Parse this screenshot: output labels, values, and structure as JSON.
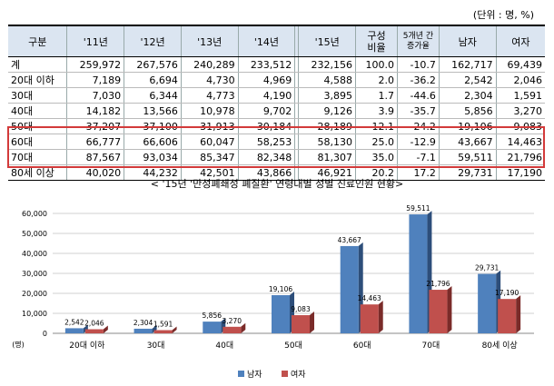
{
  "unit_note": "(단위 : 명, %)",
  "table": {
    "headers": [
      "구분",
      "'11년",
      "'12년",
      "'13년",
      "'14년",
      "'15년",
      "구성\n비율",
      "5개년 간\n증가율",
      "남자",
      "여자"
    ],
    "rows": [
      [
        "계",
        "259,972",
        "267,576",
        "240,289",
        "233,512",
        "232,156",
        "100.0",
        "-10.7",
        "162,717",
        "69,439"
      ],
      [
        "20대 이하",
        "7,189",
        "6,694",
        "4,730",
        "4,969",
        "4,588",
        "2.0",
        "-36.2",
        "2,542",
        "2,046"
      ],
      [
        "30대",
        "7,030",
        "6,344",
        "4,773",
        "4,190",
        "3,895",
        "1.7",
        "-44.6",
        "2,304",
        "1,591"
      ],
      [
        "40대",
        "14,182",
        "13,566",
        "10,978",
        "9,702",
        "9,126",
        "3.9",
        "-35.7",
        "5,856",
        "3,270"
      ],
      [
        "50대",
        "37,207",
        "37,100",
        "31,913",
        "30,184",
        "28,189",
        "12.1",
        "-24.2",
        "19,106",
        "9,083"
      ],
      [
        "60대",
        "66,777",
        "66,606",
        "60,047",
        "58,253",
        "58,130",
        "25.0",
        "-12.9",
        "43,667",
        "14,463"
      ],
      [
        "70대",
        "87,567",
        "93,034",
        "85,347",
        "82,348",
        "81,307",
        "35.0",
        "-7.1",
        "59,511",
        "21,796"
      ],
      [
        "80세 이상",
        "40,020",
        "44,232",
        "42,501",
        "43,866",
        "46,921",
        "20.2",
        "17.2",
        "29,731",
        "17,190"
      ]
    ]
  },
  "chart_data": {
    "type": "bar",
    "title": "< '15년 '만성폐쇄성 폐질환' 연령대별 성별 진료인원 현황>",
    "ylabel": "(명)",
    "ylim": [
      0,
      60000
    ],
    "yticks": [
      0,
      10000,
      20000,
      30000,
      40000,
      50000,
      60000
    ],
    "ytick_labels": [
      "0",
      "10,000",
      "20,000",
      "30,000",
      "40,000",
      "50,000",
      "60,000"
    ],
    "categories": [
      "20대 이하",
      "30대",
      "40대",
      "50대",
      "60대",
      "70대",
      "80세 이상"
    ],
    "series": [
      {
        "name": "남자",
        "color": "#4f81bd",
        "side": "#2d4e7a",
        "values": [
          2542,
          2304,
          5856,
          19106,
          43667,
          59511,
          29731
        ],
        "labels": [
          "2,542",
          "2,304",
          "5,856",
          "19,106",
          "43,667",
          "59,511",
          "29,731"
        ]
      },
      {
        "name": "여자",
        "color": "#c0504d",
        "side": "#7a2b29",
        "values": [
          2046,
          1591,
          3270,
          9083,
          14463,
          21796,
          17190
        ],
        "labels": [
          "2,046",
          "1,591",
          "3,270",
          "9,083",
          "14,463",
          "21,796",
          "17,190"
        ]
      }
    ],
    "grid": true,
    "legend": "bottom-center"
  }
}
